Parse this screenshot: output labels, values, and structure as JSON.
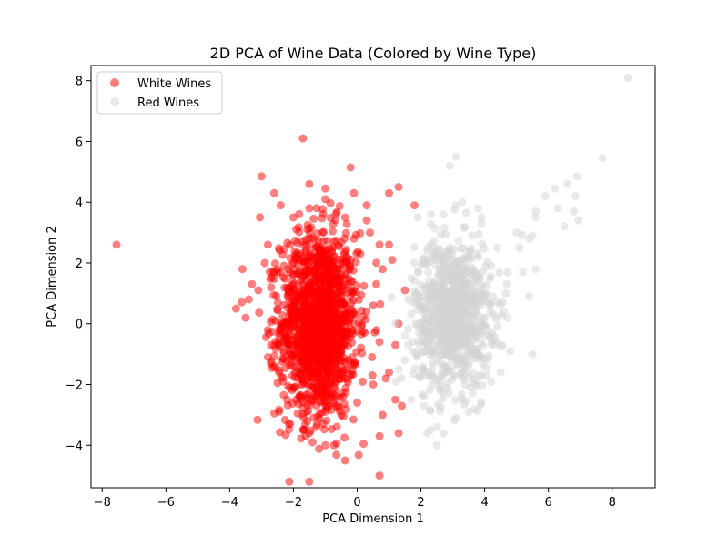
{
  "chart_data": {
    "type": "scatter",
    "title": "2D PCA of Wine Data (Colored by Wine Type)",
    "xlabel": "PCA Dimension 1",
    "ylabel": "PCA Dimension 2",
    "xlim": [
      -8.35,
      9.35
    ],
    "ylim": [
      -5.4,
      8.5
    ],
    "xticks": [
      -8,
      -6,
      -4,
      -2,
      0,
      2,
      4,
      6,
      8
    ],
    "xtick_labels": [
      "−8",
      "−6",
      "−4",
      "−2",
      "0",
      "2",
      "4",
      "6",
      "8"
    ],
    "yticks": [
      -4,
      -2,
      0,
      2,
      4,
      6,
      8
    ],
    "ytick_labels": [
      "−4",
      "−2",
      "0",
      "2",
      "4",
      "6",
      "8"
    ],
    "grid": false,
    "legend_position": "top-left",
    "series": [
      {
        "name": "White Wines",
        "color": "#ff0000",
        "alpha": 0.5,
        "cluster": {
          "cx": -1.2,
          "cy": 0.0,
          "sx": 0.6,
          "sy": 1.5,
          "n": 1500
        },
        "points": [
          [
            -7.55,
            2.6
          ],
          [
            -1.7,
            6.1
          ],
          [
            -3.0,
            4.85
          ],
          [
            -2.6,
            4.3
          ],
          [
            -3.05,
            3.5
          ],
          [
            -3.3,
            1.3
          ],
          [
            -3.6,
            1.8
          ],
          [
            -3.8,
            0.5
          ],
          [
            -3.5,
            0.2
          ],
          [
            -3.4,
            0.8
          ],
          [
            -1.5,
            4.6
          ],
          [
            -1.0,
            4.45
          ],
          [
            -0.1,
            4.3
          ],
          [
            1.0,
            4.3
          ],
          [
            1.3,
            4.5
          ],
          [
            1.8,
            3.9
          ],
          [
            0.3,
            3.9
          ],
          [
            0.3,
            3.4
          ],
          [
            -0.1,
            2.8
          ],
          [
            0.7,
            2.6
          ],
          [
            1.0,
            2.6
          ],
          [
            1.1,
            2.1
          ],
          [
            1.5,
            1.1
          ],
          [
            1.3,
            0.0
          ],
          [
            1.2,
            -0.7
          ],
          [
            1.0,
            -1.6
          ],
          [
            1.2,
            -2.5
          ],
          [
            1.4,
            -2.7
          ],
          [
            1.3,
            -3.6
          ],
          [
            0.7,
            -3.7
          ],
          [
            0.2,
            -3.95
          ],
          [
            -0.4,
            -3.75
          ],
          [
            -1.4,
            -3.9
          ],
          [
            -1.5,
            -3.6
          ],
          [
            -2.1,
            -3.3
          ],
          [
            -2.6,
            -2.95
          ],
          [
            -2.5,
            -1.95
          ],
          [
            -2.6,
            -1.4
          ],
          [
            -2.8,
            -1.1
          ],
          [
            -2.7,
            -0.7
          ],
          [
            -2.2,
            -2.5
          ],
          [
            -1.7,
            -2.6
          ],
          [
            -1.0,
            -2.9
          ],
          [
            -0.5,
            -3.0
          ],
          [
            0.0,
            -2.6
          ],
          [
            0.7,
            -5.0
          ],
          [
            -1.0,
            -4.0
          ],
          [
            -1.2,
            0.85
          ],
          [
            -1.0,
            4.1
          ],
          [
            -0.5,
            -1.0
          ],
          [
            0.5,
            -2.0
          ],
          [
            0.8,
            -3.0
          ],
          [
            -1.5,
            3.8
          ],
          [
            -2.0,
            3.5
          ],
          [
            -2.4,
            3.9
          ],
          [
            -2.8,
            2.6
          ],
          [
            -2.9,
            2.0
          ],
          [
            -3.1,
            1.1
          ],
          [
            -2.7,
            1.2
          ],
          [
            -2.5,
            1.7
          ],
          [
            0.9,
            -1.8
          ],
          [
            0.6,
            1.3
          ],
          [
            0.8,
            1.8
          ],
          [
            0.5,
            0.6
          ],
          [
            0.7,
            -0.6
          ],
          [
            -0.4,
            2.8
          ],
          [
            0.1,
            2.3
          ],
          [
            0.4,
            3.0
          ],
          [
            -0.2,
            1.4
          ],
          [
            -2.3,
            -0.9
          ]
        ]
      },
      {
        "name": "Red Wines",
        "color": "#d3d3d3",
        "alpha": 0.5,
        "cluster": {
          "cx": 3.0,
          "cy": 0.3,
          "sx": 0.6,
          "sy": 1.2,
          "n": 900
        },
        "points": [
          [
            8.5,
            8.1
          ],
          [
            7.7,
            5.45
          ],
          [
            6.9,
            4.85
          ],
          [
            6.6,
            4.6
          ],
          [
            6.2,
            4.45
          ],
          [
            5.9,
            4.2
          ],
          [
            6.85,
            4.2
          ],
          [
            6.8,
            3.7
          ],
          [
            6.95,
            3.4
          ],
          [
            6.5,
            3.2
          ],
          [
            6.3,
            3.8
          ],
          [
            5.6,
            3.7
          ],
          [
            5.6,
            3.5
          ],
          [
            5.4,
            2.8
          ],
          [
            5.5,
            2.9
          ],
          [
            5.0,
            3.0
          ],
          [
            5.1,
            2.5
          ],
          [
            5.6,
            1.8
          ],
          [
            5.2,
            1.7
          ],
          [
            5.4,
            0.9
          ],
          [
            5.5,
            -1.0
          ],
          [
            4.8,
            -0.9
          ],
          [
            4.3,
            -0.7
          ],
          [
            4.6,
            0.4
          ],
          [
            4.7,
            1.3
          ],
          [
            4.2,
            1.9
          ],
          [
            4.4,
            2.5
          ],
          [
            3.9,
            3.5
          ],
          [
            3.3,
            4.0
          ],
          [
            2.9,
            5.2
          ],
          [
            3.1,
            5.5
          ],
          [
            3.1,
            3.9
          ],
          [
            2.7,
            3.6
          ],
          [
            1.9,
            3.5
          ],
          [
            1.7,
            1.5
          ],
          [
            1.5,
            -0.4
          ],
          [
            1.3,
            -1.5
          ],
          [
            1.5,
            -1.2
          ],
          [
            1.7,
            -2.5
          ],
          [
            2.1,
            -2.7
          ],
          [
            2.3,
            -3.5
          ],
          [
            2.2,
            -3.6
          ],
          [
            2.5,
            -3.4
          ],
          [
            2.7,
            -3.6
          ],
          [
            2.5,
            -4.0
          ],
          [
            3.1,
            -3.1
          ],
          [
            3.5,
            -2.9
          ],
          [
            3.9,
            -2.6
          ],
          [
            4.2,
            -1.9
          ],
          [
            4.5,
            -1.6
          ],
          [
            2.0,
            -1.7
          ],
          [
            1.8,
            2.0
          ],
          [
            2.2,
            2.4
          ],
          [
            2.4,
            2.7
          ],
          [
            1.6,
            0.8
          ],
          [
            3.6,
            2.9
          ],
          [
            3.8,
            2.2
          ],
          [
            2.6,
            -2.2
          ],
          [
            2.9,
            2.5
          ],
          [
            4.1,
            -0.2
          ]
        ]
      }
    ]
  }
}
